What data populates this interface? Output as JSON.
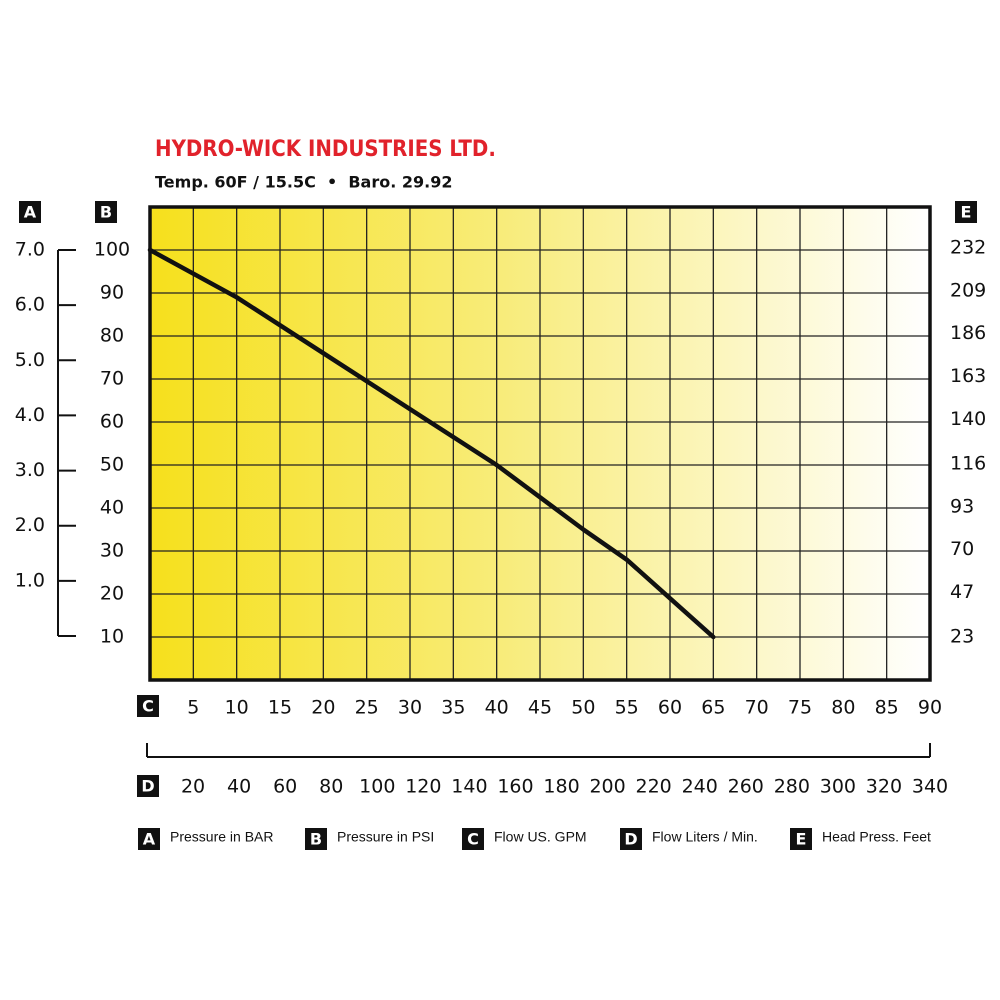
{
  "chart_data": {
    "type": "line",
    "title": "HYDRO-WICK INDUSTRIES LTD.",
    "subtitle": "Temp. 60F / 15.5C  •  Baro. 29.92",
    "x": [
      0,
      10,
      20,
      30,
      40,
      50,
      55,
      60,
      65
    ],
    "values": [
      100,
      89,
      76,
      63,
      50,
      35,
      28,
      19,
      10
    ],
    "color": "#111111",
    "xlim": [
      0,
      90
    ],
    "xticks": [
      5,
      10,
      15,
      20,
      25,
      30,
      35,
      40,
      45,
      50,
      55,
      60,
      65,
      70,
      75,
      80,
      85,
      90
    ],
    "ylim": [
      0,
      110
    ],
    "yticks": [
      10,
      20,
      30,
      40,
      50,
      60,
      70,
      80,
      90,
      100
    ],
    "grid": true,
    "bar_axis": {
      "lim": [
        0,
        7
      ],
      "ticks": [
        {
          "value": 1,
          "label": "1.0"
        },
        {
          "value": 2,
          "label": "2.0"
        },
        {
          "value": 3,
          "label": "3.0"
        },
        {
          "value": 4,
          "label": "4.0"
        },
        {
          "value": 5,
          "label": "5.0"
        },
        {
          "value": 6,
          "label": "6.0"
        },
        {
          "value": 7,
          "label": "7.0"
        }
      ]
    },
    "y2lim": [
      0,
      254
    ],
    "y2ticks": [
      23,
      47,
      70,
      93,
      116,
      140,
      163,
      186,
      209,
      232
    ],
    "liters_axis": {
      "lim": [
        0,
        340
      ],
      "ticks": [
        20,
        40,
        60,
        80,
        100,
        120,
        140,
        160,
        180,
        200,
        220,
        240,
        260,
        280,
        300,
        320,
        340
      ]
    },
    "legend": [
      {
        "key": "A",
        "label": "Pressure in BAR"
      },
      {
        "key": "B",
        "label": "Pressure in PSI"
      },
      {
        "key": "C",
        "label": "Flow US. GPM"
      },
      {
        "key": "D",
        "label": "Flow Liters / Min."
      },
      {
        "key": "E",
        "label": "Head Press. Feet"
      }
    ]
  }
}
